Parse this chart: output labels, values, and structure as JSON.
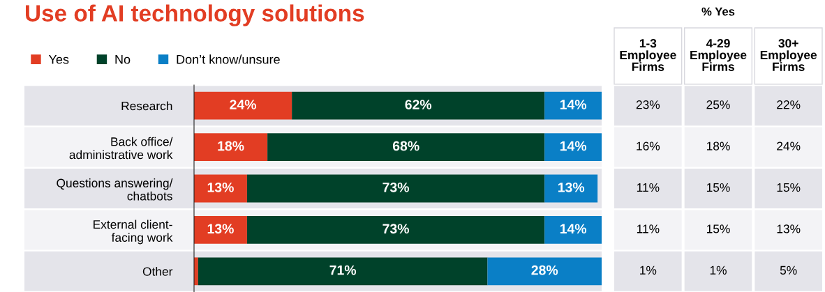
{
  "chart_data": [
    {
      "type": "bar",
      "orientation": "horizontal",
      "stacked": true,
      "title": "Use of AI technology solutions",
      "legend": "top left",
      "categories": [
        "Research",
        "Back office/\nadministrative work",
        "Questions answering/\nchatbots",
        "External client-\nfacing work",
        "Other"
      ],
      "series": [
        {
          "name": "Yes",
          "color": "#e23d23",
          "values": [
            24,
            18,
            13,
            13,
            1
          ],
          "value_labels": [
            "24%",
            "18%",
            "13%",
            "13%",
            null
          ]
        },
        {
          "name": "No",
          "color": "#00422a",
          "values": [
            62,
            68,
            73,
            73,
            71
          ],
          "value_labels": [
            "62%",
            "68%",
            "73%",
            "73%",
            "71%"
          ]
        },
        {
          "name": "Don’t know/unsure",
          "color": "#0a7fc6",
          "values": [
            14,
            14,
            13,
            14,
            28
          ],
          "value_labels": [
            "14%",
            "14%",
            "13%",
            "14%",
            "28%"
          ]
        }
      ]
    },
    {
      "type": "other",
      "title": "% Yes",
      "categories": [
        "1-3\nEmployee\nFirms",
        "4-29\nEmployee\nFirms",
        "30+\nEmployee\nFirms"
      ],
      "cell_labels": [
        [
          "23%",
          "25%",
          "22%"
        ],
        [
          "16%",
          "18%",
          "24%"
        ],
        [
          "11%",
          "15%",
          "15%"
        ],
        [
          "11%",
          "15%",
          "13%"
        ],
        [
          "1%",
          "1%",
          "5%"
        ]
      ]
    }
  ]
}
